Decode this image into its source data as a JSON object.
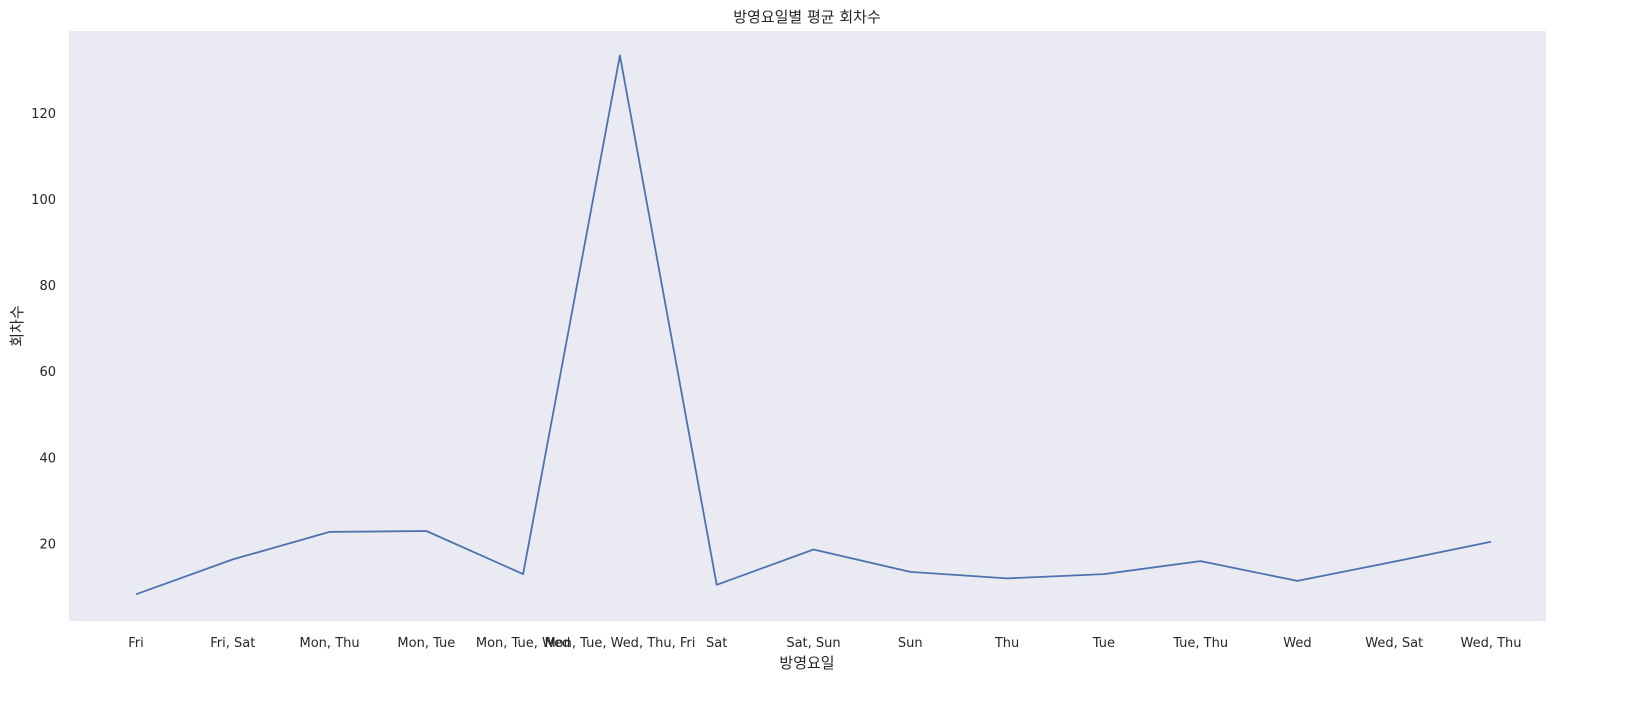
{
  "chart_data": {
    "type": "line",
    "title": "방영요일별 평균 회차수",
    "xlabel": "방영요일",
    "ylabel": "회차수",
    "categories": [
      "Fri",
      "Fri, Sat",
      "Mon, Thu",
      "Mon, Tue",
      "Mon, Tue, Wed",
      "Mon, Tue, Wed, Thu, Fri",
      "Sat",
      "Sat, Sun",
      "Sun",
      "Thu",
      "Tue",
      "Tue, Thu",
      "Wed",
      "Wed, Sat",
      "Wed, Thu"
    ],
    "series": [
      {
        "values": [
          8.2,
          16.3,
          22.7,
          22.9,
          12.9,
          133.3,
          10.4,
          18.6,
          13.4,
          11.9,
          12.9,
          15.9,
          11.3,
          15.8,
          20.4
        ]
      }
    ],
    "ylim": [
      2,
      139
    ],
    "yticks": [
      20,
      40,
      60,
      80,
      100,
      120
    ],
    "grid": false,
    "line_color": "#4c72b0",
    "plot_background": "#eaeaf2"
  }
}
